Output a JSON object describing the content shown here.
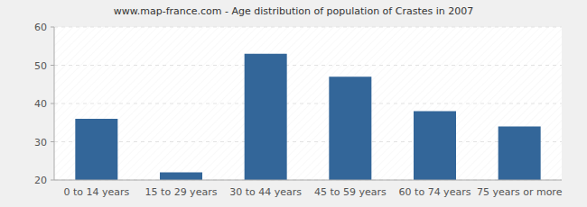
{
  "chart_data": {
    "type": "bar",
    "title": "www.map-france.com - Age distribution of population of Crastes in 2007",
    "categories": [
      "0 to 14 years",
      "15 to 29 years",
      "30 to 44 years",
      "45 to 59 years",
      "60 to 74 years",
      "75 years or more"
    ],
    "values": [
      36,
      22,
      53,
      47,
      38,
      34
    ],
    "color": "#336699",
    "ylim": [
      20,
      60
    ],
    "yticks": [
      20,
      30,
      40,
      50,
      60
    ],
    "grid": true
  }
}
